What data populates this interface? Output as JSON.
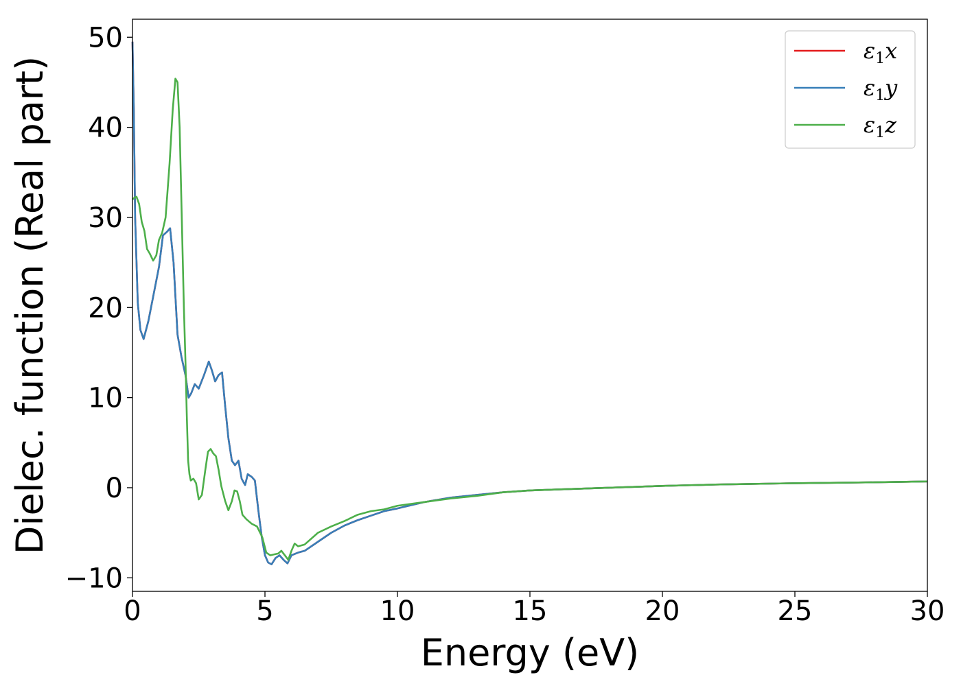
{
  "chart_data": {
    "type": "line",
    "xlabel": "Energy (eV)",
    "ylabel": "Dielec. function (Real part)",
    "xlim": [
      0,
      30
    ],
    "ylim": [
      -11.5,
      52
    ],
    "xticks": [
      0,
      5,
      10,
      15,
      20,
      25,
      30
    ],
    "yticks": [
      -10,
      0,
      10,
      20,
      30,
      40,
      50
    ],
    "xtick_labels": [
      "0",
      "5",
      "10",
      "15",
      "20",
      "25",
      "30"
    ],
    "ytick_labels": [
      "−10",
      "0",
      "10",
      "20",
      "30",
      "40",
      "50"
    ],
    "grid": false,
    "legend_position": "top-right",
    "series": [
      {
        "name": "ε1x",
        "legend": {
          "symbol": "ε",
          "sub": "1",
          "axis": "x"
        },
        "color": "#e41a1c",
        "x": [
          0,
          0.05,
          0.1,
          0.2,
          0.3,
          0.42,
          0.6,
          0.8,
          1.0,
          1.15,
          1.3,
          1.42,
          1.55,
          1.7,
          1.85,
          2.0,
          2.12,
          2.22,
          2.35,
          2.5,
          2.7,
          2.88,
          3.0,
          3.12,
          3.25,
          3.38,
          3.5,
          3.62,
          3.75,
          3.87,
          4.0,
          4.12,
          4.25,
          4.35,
          4.5,
          4.62,
          4.75,
          4.88,
          5.0,
          5.12,
          5.25,
          5.4,
          5.55,
          5.7,
          5.85,
          6.0,
          6.25,
          6.5,
          7.0,
          7.5,
          8.0,
          8.5,
          9.0,
          9.5,
          10.0,
          11.0,
          12.0,
          13.0,
          14.0,
          15.0,
          16.0,
          18.0,
          20.0,
          22.0,
          25.0,
          28.0,
          30.0
        ],
        "y": [
          49.5,
          42.0,
          30.0,
          20.5,
          17.5,
          16.5,
          18.5,
          21.5,
          24.5,
          28.0,
          28.4,
          28.8,
          25.0,
          17.0,
          14.5,
          12.5,
          10.0,
          10.5,
          11.5,
          11.0,
          12.5,
          14.0,
          13.0,
          11.8,
          12.5,
          12.8,
          9.0,
          5.5,
          3.0,
          2.5,
          3.0,
          1.0,
          0.3,
          1.5,
          1.2,
          0.8,
          -2.5,
          -5.5,
          -7.5,
          -8.3,
          -8.5,
          -7.8,
          -7.5,
          -8.0,
          -8.4,
          -7.5,
          -7.2,
          -7.0,
          -6.0,
          -5.0,
          -4.2,
          -3.6,
          -3.1,
          -2.6,
          -2.3,
          -1.6,
          -1.1,
          -0.8,
          -0.5,
          -0.3,
          -0.2,
          0.0,
          0.2,
          0.35,
          0.5,
          0.6,
          0.7
        ]
      },
      {
        "name": "ε1y",
        "legend": {
          "symbol": "ε",
          "sub": "1",
          "axis": "y"
        },
        "color": "#377eb8",
        "x": [
          0,
          0.05,
          0.1,
          0.2,
          0.3,
          0.42,
          0.6,
          0.8,
          1.0,
          1.15,
          1.3,
          1.42,
          1.55,
          1.7,
          1.85,
          2.0,
          2.12,
          2.22,
          2.35,
          2.5,
          2.7,
          2.88,
          3.0,
          3.12,
          3.25,
          3.38,
          3.5,
          3.62,
          3.75,
          3.87,
          4.0,
          4.12,
          4.25,
          4.35,
          4.5,
          4.62,
          4.75,
          4.88,
          5.0,
          5.12,
          5.25,
          5.4,
          5.55,
          5.7,
          5.85,
          6.0,
          6.25,
          6.5,
          7.0,
          7.5,
          8.0,
          8.5,
          9.0,
          9.5,
          10.0,
          11.0,
          12.0,
          13.0,
          14.0,
          15.0,
          16.0,
          18.0,
          20.0,
          22.0,
          25.0,
          28.0,
          30.0
        ],
        "y": [
          49.5,
          42.0,
          30.0,
          20.5,
          17.5,
          16.5,
          18.5,
          21.5,
          24.5,
          28.0,
          28.4,
          28.8,
          25.0,
          17.0,
          14.5,
          12.5,
          10.0,
          10.5,
          11.5,
          11.0,
          12.5,
          14.0,
          13.0,
          11.8,
          12.5,
          12.8,
          9.0,
          5.5,
          3.0,
          2.5,
          3.0,
          1.0,
          0.3,
          1.5,
          1.2,
          0.8,
          -2.5,
          -5.5,
          -7.5,
          -8.3,
          -8.5,
          -7.8,
          -7.5,
          -8.0,
          -8.4,
          -7.5,
          -7.2,
          -7.0,
          -6.0,
          -5.0,
          -4.2,
          -3.6,
          -3.1,
          -2.6,
          -2.3,
          -1.6,
          -1.1,
          -0.8,
          -0.5,
          -0.3,
          -0.2,
          0.0,
          0.2,
          0.35,
          0.5,
          0.6,
          0.7
        ]
      },
      {
        "name": "ε1z",
        "legend": {
          "symbol": "ε",
          "sub": "1",
          "axis": "z"
        },
        "color": "#4daf4a",
        "x": [
          0,
          0.08,
          0.15,
          0.25,
          0.35,
          0.45,
          0.55,
          0.65,
          0.78,
          0.9,
          1.0,
          1.12,
          1.25,
          1.4,
          1.52,
          1.62,
          1.7,
          1.78,
          1.86,
          1.94,
          2.0,
          2.05,
          2.1,
          2.15,
          2.2,
          2.3,
          2.4,
          2.5,
          2.62,
          2.75,
          2.85,
          2.95,
          3.05,
          3.15,
          3.25,
          3.35,
          3.5,
          3.62,
          3.75,
          3.85,
          3.95,
          4.05,
          4.15,
          4.3,
          4.5,
          4.7,
          4.9,
          5.05,
          5.2,
          5.35,
          5.5,
          5.62,
          5.75,
          5.88,
          6.0,
          6.12,
          6.25,
          6.5,
          7.0,
          7.5,
          8.0,
          8.5,
          9.0,
          9.5,
          10.0,
          11.0,
          12.0,
          13.0,
          14.0,
          15.0,
          16.0,
          18.0,
          20.0,
          22.0,
          25.0,
          28.0,
          30.0
        ],
        "y": [
          32.0,
          32.2,
          32.3,
          31.5,
          29.5,
          28.5,
          26.5,
          26.0,
          25.2,
          25.8,
          27.5,
          28.3,
          30.0,
          36.0,
          42.0,
          45.4,
          45.0,
          40.0,
          30.0,
          20.0,
          14.0,
          8.0,
          3.0,
          1.5,
          0.8,
          1.0,
          0.5,
          -1.3,
          -0.8,
          2.0,
          4.0,
          4.3,
          3.8,
          3.5,
          2.0,
          0.2,
          -1.5,
          -2.5,
          -1.5,
          -0.3,
          -0.4,
          -1.5,
          -3.0,
          -3.5,
          -4.0,
          -4.3,
          -5.5,
          -7.2,
          -7.5,
          -7.4,
          -7.3,
          -7.0,
          -7.5,
          -8.0,
          -7.0,
          -6.2,
          -6.5,
          -6.3,
          -5.0,
          -4.3,
          -3.7,
          -3.0,
          -2.6,
          -2.4,
          -2.0,
          -1.6,
          -1.2,
          -0.9,
          -0.5,
          -0.3,
          -0.2,
          0.0,
          0.2,
          0.35,
          0.5,
          0.6,
          0.7
        ]
      }
    ]
  }
}
